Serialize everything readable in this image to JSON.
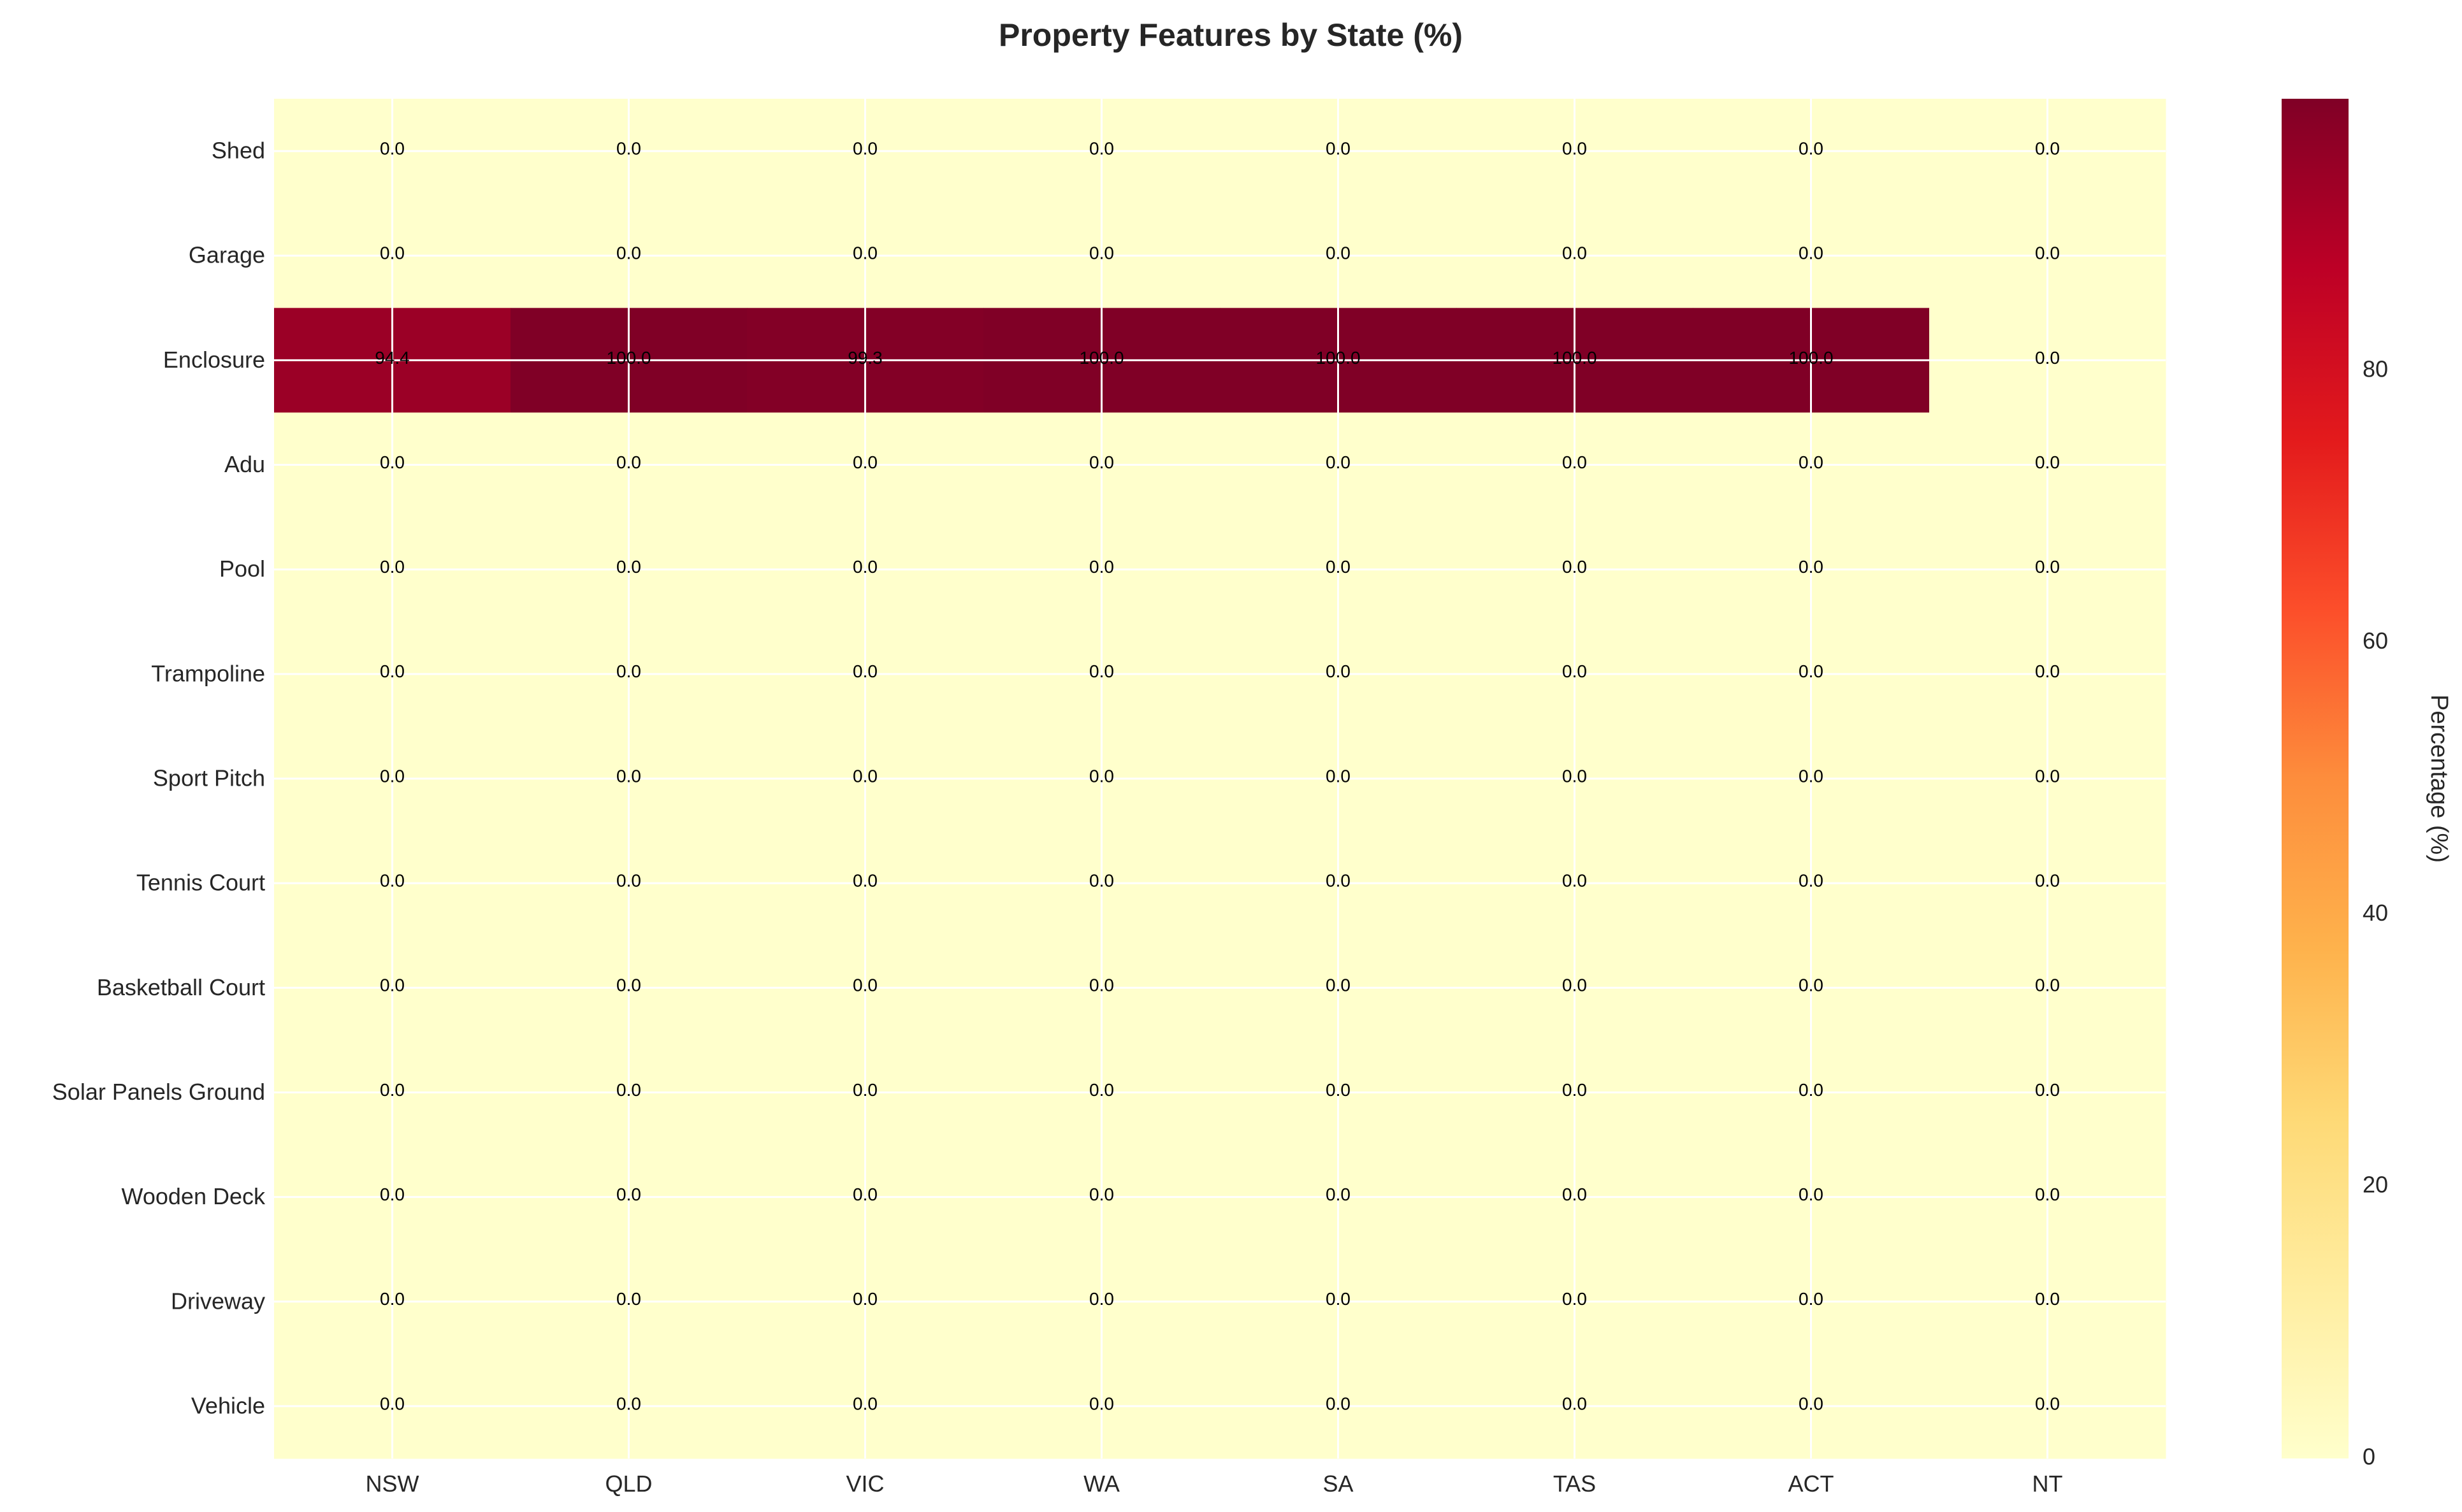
{
  "chart_data": {
    "type": "heatmap",
    "title": "Property Features by State (%)",
    "x_categories": [
      "NSW",
      "QLD",
      "VIC",
      "WA",
      "SA",
      "TAS",
      "ACT",
      "NT"
    ],
    "y_categories": [
      "Shed",
      "Garage",
      "Enclosure",
      "Adu",
      "Pool",
      "Trampoline",
      "Sport Pitch",
      "Tennis Court",
      "Basketball Court",
      "Solar Panels Ground",
      "Wooden Deck",
      "Driveway",
      "Vehicle"
    ],
    "values": [
      [
        0.0,
        0.0,
        0.0,
        0.0,
        0.0,
        0.0,
        0.0,
        0.0
      ],
      [
        0.0,
        0.0,
        0.0,
        0.0,
        0.0,
        0.0,
        0.0,
        0.0
      ],
      [
        94.4,
        100.0,
        99.3,
        100.0,
        100.0,
        100.0,
        100.0,
        0.0
      ],
      [
        0.0,
        0.0,
        0.0,
        0.0,
        0.0,
        0.0,
        0.0,
        0.0
      ],
      [
        0.0,
        0.0,
        0.0,
        0.0,
        0.0,
        0.0,
        0.0,
        0.0
      ],
      [
        0.0,
        0.0,
        0.0,
        0.0,
        0.0,
        0.0,
        0.0,
        0.0
      ],
      [
        0.0,
        0.0,
        0.0,
        0.0,
        0.0,
        0.0,
        0.0,
        0.0
      ],
      [
        0.0,
        0.0,
        0.0,
        0.0,
        0.0,
        0.0,
        0.0,
        0.0
      ],
      [
        0.0,
        0.0,
        0.0,
        0.0,
        0.0,
        0.0,
        0.0,
        0.0
      ],
      [
        0.0,
        0.0,
        0.0,
        0.0,
        0.0,
        0.0,
        0.0,
        0.0
      ],
      [
        0.0,
        0.0,
        0.0,
        0.0,
        0.0,
        0.0,
        0.0,
        0.0
      ],
      [
        0.0,
        0.0,
        0.0,
        0.0,
        0.0,
        0.0,
        0.0,
        0.0
      ],
      [
        0.0,
        0.0,
        0.0,
        0.0,
        0.0,
        0.0,
        0.0,
        0.0
      ]
    ],
    "cell_labels": [
      [
        "0.0",
        "0.0",
        "0.0",
        "0.0",
        "0.0",
        "0.0",
        "0.0",
        "0.0"
      ],
      [
        "0.0",
        "0.0",
        "0.0",
        "0.0",
        "0.0",
        "0.0",
        "0.0",
        "0.0"
      ],
      [
        "94.4",
        "100.0",
        "99.3",
        "100.0",
        "100.0",
        "100.0",
        "100.0",
        "0.0"
      ],
      [
        "0.0",
        "0.0",
        "0.0",
        "0.0",
        "0.0",
        "0.0",
        "0.0",
        "0.0"
      ],
      [
        "0.0",
        "0.0",
        "0.0",
        "0.0",
        "0.0",
        "0.0",
        "0.0",
        "0.0"
      ],
      [
        "0.0",
        "0.0",
        "0.0",
        "0.0",
        "0.0",
        "0.0",
        "0.0",
        "0.0"
      ],
      [
        "0.0",
        "0.0",
        "0.0",
        "0.0",
        "0.0",
        "0.0",
        "0.0",
        "0.0"
      ],
      [
        "0.0",
        "0.0",
        "0.0",
        "0.0",
        "0.0",
        "0.0",
        "0.0",
        "0.0"
      ],
      [
        "0.0",
        "0.0",
        "0.0",
        "0.0",
        "0.0",
        "0.0",
        "0.0",
        "0.0"
      ],
      [
        "0.0",
        "0.0",
        "0.0",
        "0.0",
        "0.0",
        "0.0",
        "0.0",
        "0.0"
      ],
      [
        "0.0",
        "0.0",
        "0.0",
        "0.0",
        "0.0",
        "0.0",
        "0.0",
        "0.0"
      ],
      [
        "0.0",
        "0.0",
        "0.0",
        "0.0",
        "0.0",
        "0.0",
        "0.0",
        "0.0"
      ],
      [
        "0.0",
        "0.0",
        "0.0",
        "0.0",
        "0.0",
        "0.0",
        "0.0",
        "0.0"
      ]
    ],
    "colorbar": {
      "label": "Percentage (%)",
      "colormap": "YlOrRd",
      "range": [
        0,
        100
      ],
      "ticks": [
        0,
        20,
        40,
        60,
        80
      ],
      "tick_labels": [
        "0",
        "20",
        "40",
        "60",
        "80"
      ]
    },
    "xlabel": "",
    "ylabel": "",
    "grid": true,
    "cell_colors": {
      "zero": "#ffffcc",
      "full": "#800026",
      "high": "#9b0026"
    },
    "grid_color": "#ffffff"
  }
}
